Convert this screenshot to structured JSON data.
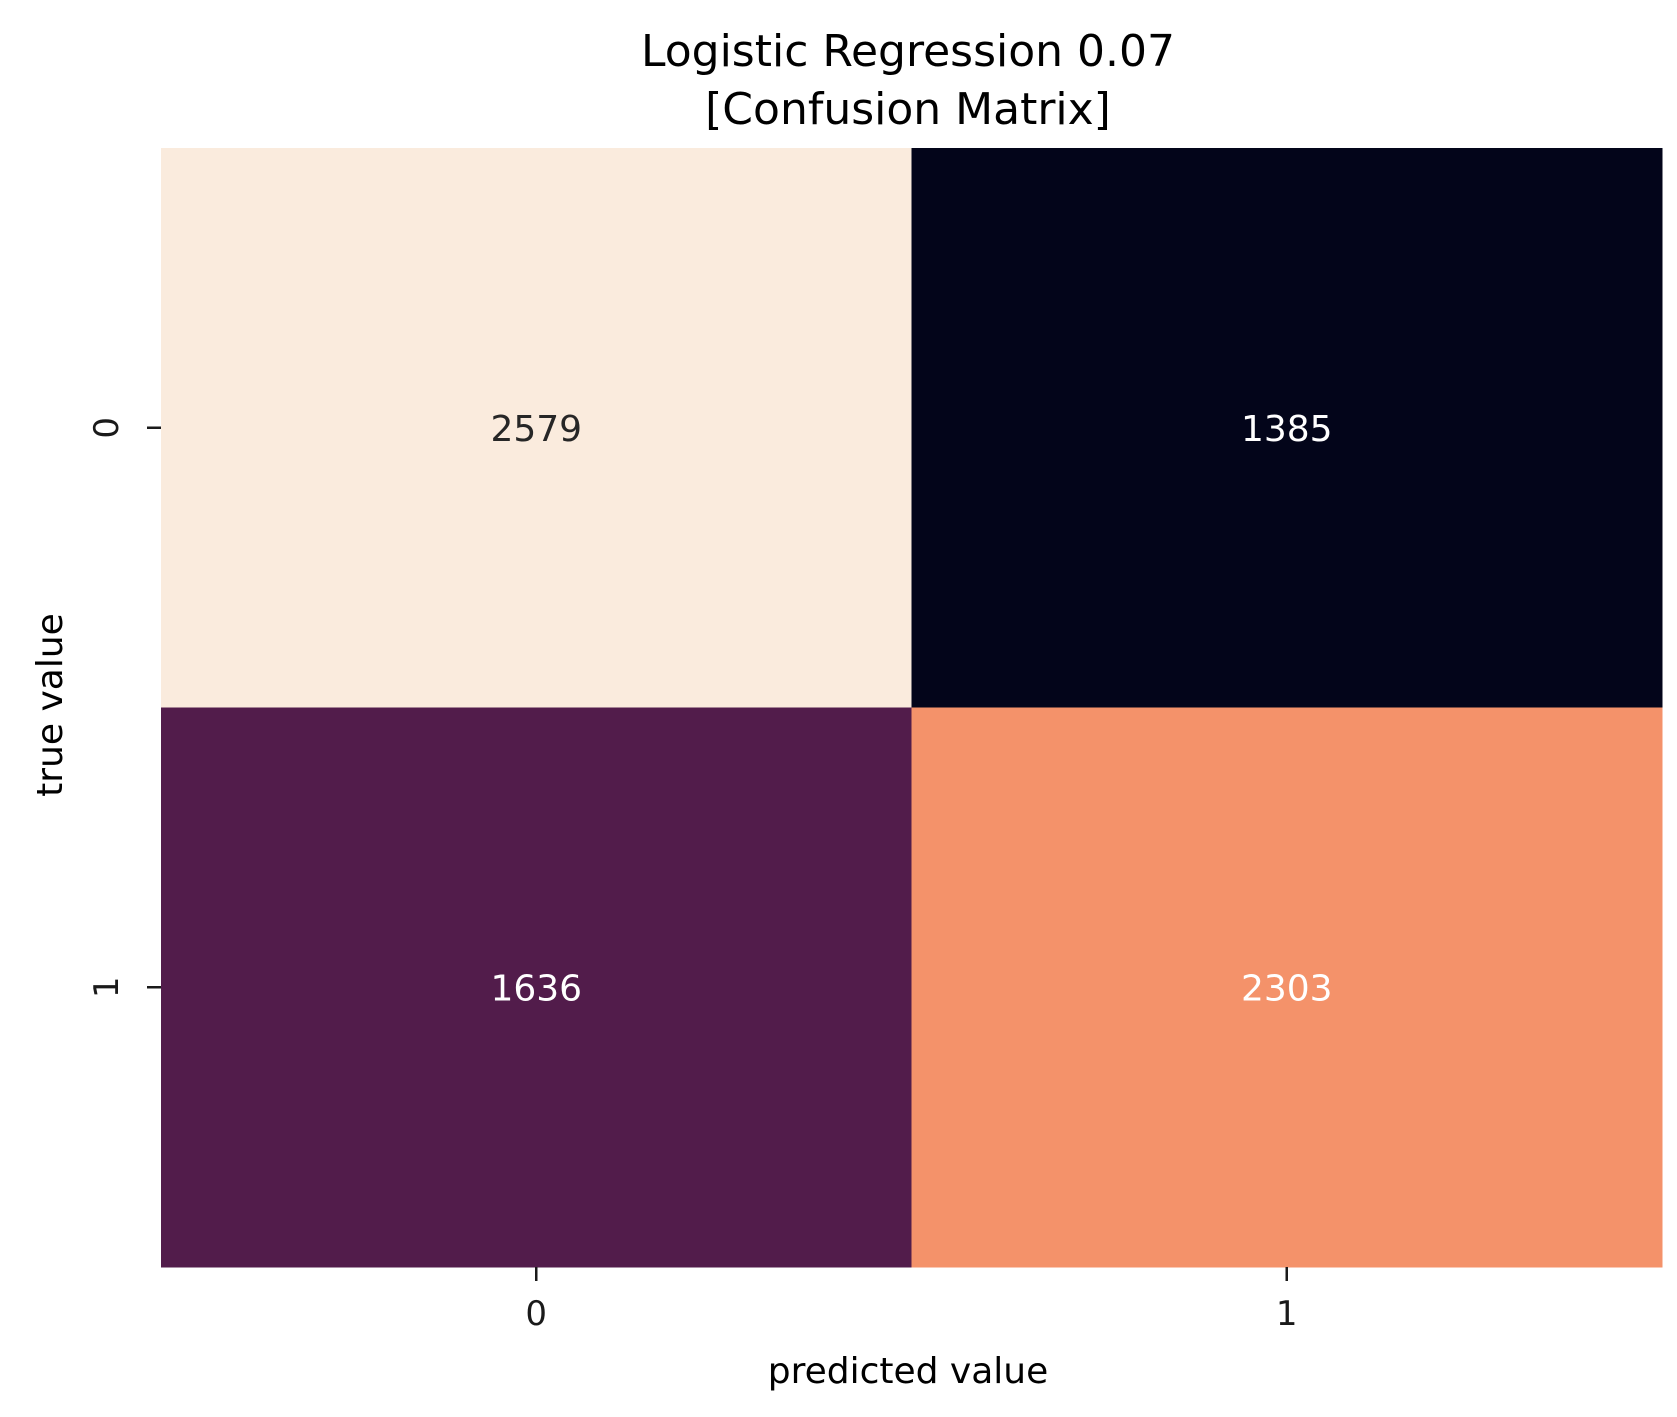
{
  "chart_data": {
    "type": "heatmap",
    "title": "Logistic Regression  0.07",
    "subtitle": "[Confusion Matrix]",
    "xlabel": "predicted value",
    "ylabel": "true value",
    "x_categories": [
      "0",
      "1"
    ],
    "y_categories": [
      "0",
      "1"
    ],
    "values": [
      [
        2579,
        1385
      ],
      [
        1636,
        2303
      ]
    ],
    "cell_colors": [
      [
        "#FAEBDD",
        "#03051A"
      ],
      [
        "#521C4B",
        "#F4926A"
      ]
    ],
    "label_colors": [
      [
        "#262626",
        "#ffffff"
      ],
      [
        "#ffffff",
        "#ffffff"
      ]
    ],
    "colorbar": false,
    "grid": false
  }
}
